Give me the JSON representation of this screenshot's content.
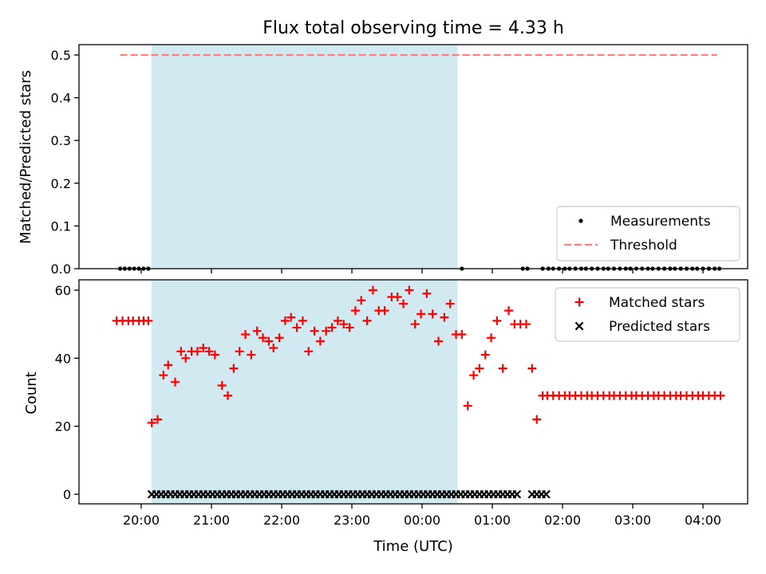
{
  "chart_data": [
    {
      "type": "scatter",
      "title": "Flux total observing time = 4.33 h",
      "xlabel": "",
      "ylabel": "Matched/Predicted stars",
      "ylim": [
        0,
        0.52
      ],
      "yticks": [
        "0.0",
        "0.1",
        "0.2",
        "0.3",
        "0.4",
        "0.5"
      ],
      "grid": false,
      "legend_position": "lower-right",
      "series": [
        {
          "name": "Measurements",
          "marker": "dot",
          "color": "#000000",
          "x": [
            "19:42",
            "19:46",
            "19:50",
            "19:54",
            "19:58",
            "20:02",
            "20:06",
            "00:34",
            "01:26",
            "01:30",
            "01:43",
            "01:48",
            "01:52",
            "01:57",
            "02:02",
            "02:06",
            "02:11",
            "02:16",
            "02:20",
            "02:25",
            "02:30",
            "02:35",
            "02:39",
            "02:44",
            "02:49",
            "02:54",
            "02:58",
            "03:03",
            "03:08",
            "03:13",
            "03:17",
            "03:22",
            "03:27",
            "03:32",
            "03:36",
            "03:41",
            "03:46",
            "03:51",
            "03:55",
            "04:00",
            "04:05",
            "04:10",
            "04:14"
          ],
          "y": [
            0,
            0,
            0,
            0,
            0,
            0,
            0,
            0,
            0,
            0,
            0,
            0,
            0,
            0,
            0,
            0,
            0,
            0,
            0,
            0,
            0,
            0,
            0,
            0,
            0,
            0,
            0,
            0,
            0,
            0,
            0,
            0,
            0,
            0,
            0,
            0,
            0,
            0,
            0,
            0,
            0,
            0,
            0
          ]
        },
        {
          "name": "Threshold",
          "style": "dashed",
          "color": "#ff7f7f",
          "x": [
            "19:42",
            "04:12"
          ],
          "y": [
            0.5,
            0.5
          ]
        }
      ],
      "shaded_region": {
        "x_start": "20:09",
        "x_end": "00:30",
        "color": "#add8e6"
      }
    },
    {
      "type": "scatter",
      "title": "",
      "xlabel": "Time (UTC)",
      "ylabel": "Count",
      "ylim": [
        -3,
        63
      ],
      "yticks": [
        "0",
        "20",
        "40",
        "60"
      ],
      "xticks": [
        "20:00",
        "21:00",
        "22:00",
        "23:00",
        "00:00",
        "01:00",
        "02:00",
        "03:00",
        "04:00"
      ],
      "grid": false,
      "legend_position": "upper-right",
      "series": [
        {
          "name": "Matched stars",
          "marker": "plus",
          "color": "#ff0000",
          "x": [
            "19:39",
            "19:44",
            "19:49",
            "19:53",
            "19:58",
            "20:02",
            "20:06",
            "20:09",
            "20:14",
            "20:19",
            "20:23",
            "20:29",
            "20:34",
            "20:38",
            "20:43",
            "20:48",
            "20:53",
            "20:58",
            "21:03",
            "21:09",
            "21:14",
            "21:19",
            "21:24",
            "21:29",
            "21:34",
            "21:39",
            "21:44",
            "21:49",
            "21:53",
            "21:58",
            "22:03",
            "22:08",
            "22:13",
            "22:18",
            "22:23",
            "22:28",
            "22:33",
            "22:38",
            "22:43",
            "22:48",
            "22:53",
            "22:58",
            "23:03",
            "23:08",
            "23:13",
            "23:18",
            "23:23",
            "23:28",
            "23:34",
            "23:39",
            "23:44",
            "23:49",
            "23:54",
            "23:59",
            "00:04",
            "00:09",
            "00:14",
            "00:19",
            "00:24",
            "00:29",
            "00:34",
            "00:39",
            "00:44",
            "00:49",
            "00:54",
            "00:59",
            "01:04",
            "01:09",
            "01:14",
            "01:19",
            "01:24",
            "01:29",
            "01:34",
            "01:38",
            "01:43",
            "01:47",
            "01:52",
            "01:57",
            "02:02",
            "02:06",
            "02:11",
            "02:16",
            "02:21",
            "02:25",
            "02:30",
            "02:35",
            "02:40",
            "02:44",
            "02:49",
            "02:54",
            "02:59",
            "03:03",
            "03:08",
            "03:13",
            "03:18",
            "03:22",
            "03:27",
            "03:32",
            "03:37",
            "03:41",
            "03:46",
            "03:51",
            "03:56",
            "04:00",
            "04:05",
            "04:10",
            "04:15"
          ],
          "y": [
            51,
            51,
            51,
            51,
            51,
            51,
            51,
            21,
            22,
            35,
            38,
            33,
            42,
            40,
            42,
            42,
            43,
            42,
            41,
            32,
            29,
            37,
            42,
            47,
            41,
            48,
            46,
            45,
            43,
            46,
            51,
            52,
            49,
            51,
            42,
            48,
            45,
            48,
            49,
            51,
            50,
            49,
            54,
            57,
            51,
            60,
            54,
            54,
            58,
            58,
            56,
            60,
            50,
            53,
            59,
            53,
            45,
            52,
            56,
            47,
            47,
            26,
            35,
            37,
            41,
            46,
            51,
            37,
            54,
            50,
            50,
            50,
            37,
            22,
            29,
            29,
            29,
            29,
            29,
            29,
            29,
            29,
            29,
            29,
            29,
            29,
            29,
            29,
            29,
            29,
            29,
            29,
            29,
            29,
            29,
            29,
            29,
            29,
            29,
            29,
            29,
            29,
            29,
            29,
            29,
            29,
            29
          ]
        },
        {
          "name": "Predicted stars",
          "marker": "x",
          "color": "#000000",
          "x": [
            "20:09",
            "20:13",
            "20:17",
            "20:21",
            "20:25",
            "20:29",
            "20:33",
            "20:37",
            "20:41",
            "20:45",
            "20:49",
            "20:53",
            "20:57",
            "21:01",
            "21:05",
            "21:09",
            "21:13",
            "21:17",
            "21:21",
            "21:25",
            "21:29",
            "21:33",
            "21:37",
            "21:41",
            "21:45",
            "21:49",
            "21:53",
            "21:57",
            "22:01",
            "22:05",
            "22:09",
            "22:13",
            "22:17",
            "22:21",
            "22:25",
            "22:29",
            "22:33",
            "22:37",
            "22:41",
            "22:45",
            "22:49",
            "22:53",
            "22:57",
            "23:01",
            "23:05",
            "23:09",
            "23:13",
            "23:17",
            "23:21",
            "23:25",
            "23:29",
            "23:33",
            "23:37",
            "23:41",
            "23:45",
            "23:49",
            "23:53",
            "23:57",
            "00:01",
            "00:05",
            "00:09",
            "00:13",
            "00:17",
            "00:21",
            "00:25",
            "00:29",
            "00:33",
            "00:37",
            "00:41",
            "00:45",
            "00:49",
            "00:53",
            "00:57",
            "01:01",
            "01:05",
            "01:09",
            "01:13",
            "01:17",
            "01:21",
            "01:34",
            "01:38",
            "01:42",
            "01:46"
          ],
          "y": [
            0,
            0,
            0,
            0,
            0,
            0,
            0,
            0,
            0,
            0,
            0,
            0,
            0,
            0,
            0,
            0,
            0,
            0,
            0,
            0,
            0,
            0,
            0,
            0,
            0,
            0,
            0,
            0,
            0,
            0,
            0,
            0,
            0,
            0,
            0,
            0,
            0,
            0,
            0,
            0,
            0,
            0,
            0,
            0,
            0,
            0,
            0,
            0,
            0,
            0,
            0,
            0,
            0,
            0,
            0,
            0,
            0,
            0,
            0,
            0,
            0,
            0,
            0,
            0,
            0,
            0,
            0,
            0,
            0,
            0,
            0,
            0,
            0,
            0,
            0,
            0,
            0,
            0,
            0,
            0,
            0,
            0,
            0
          ]
        }
      ],
      "shaded_region": {
        "x_start": "20:09",
        "x_end": "00:30",
        "color": "#add8e6"
      }
    }
  ]
}
